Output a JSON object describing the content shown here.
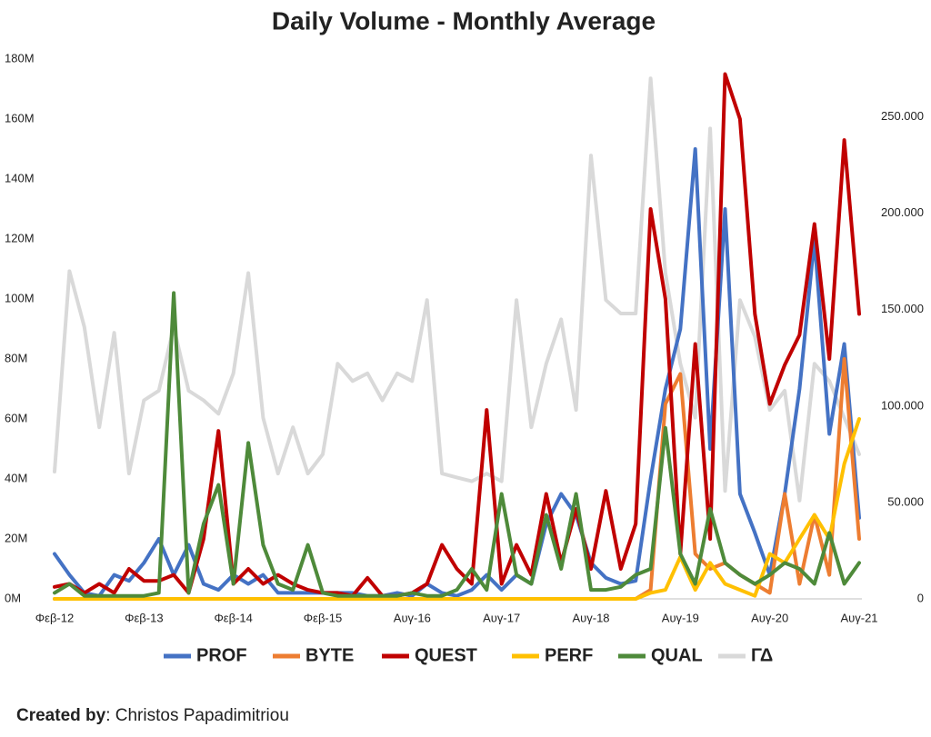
{
  "chart_data": {
    "type": "line",
    "title": "Daily Volume - Monthly Average",
    "categories": [
      "Φεβ-12",
      null,
      null,
      null,
      null,
      null,
      "Φεβ-13",
      null,
      null,
      null,
      null,
      null,
      "Φεβ-14",
      null,
      null,
      null,
      null,
      null,
      "Φεβ-15",
      null,
      null,
      null,
      null,
      null,
      "Αυγ-16",
      null,
      null,
      null,
      null,
      null,
      "Αυγ-17",
      null,
      null,
      null,
      null,
      null,
      "Αυγ-18",
      null,
      null,
      null,
      null,
      null,
      "Αυγ-19",
      null,
      null,
      null,
      null,
      null,
      "Αυγ-20",
      null,
      null,
      null,
      null,
      null,
      "Αυγ-21"
    ],
    "ylim": [
      0,
      180
    ],
    "yticks": [
      {
        "value": 0,
        "label": "0M"
      },
      {
        "value": 20,
        "label": "20M"
      },
      {
        "value": 40,
        "label": "40M"
      },
      {
        "value": 60,
        "label": "60M"
      },
      {
        "value": 80,
        "label": "80M"
      },
      {
        "value": 100,
        "label": "100M"
      },
      {
        "value": 120,
        "label": "120M"
      },
      {
        "value": 140,
        "label": "140M"
      },
      {
        "value": 160,
        "label": "160M"
      },
      {
        "value": 180,
        "label": "180M"
      }
    ],
    "y2lim": [
      0,
      280000
    ],
    "y2ticks": [
      0,
      {
        "value": 50000,
        "label": "50.000"
      },
      {
        "value": 100000,
        "label": "100.000"
      },
      {
        "value": 150000,
        "label": "150.000"
      },
      {
        "value": 200000,
        "label": "200.000"
      },
      {
        "value": 250000,
        "label": "250.000"
      }
    ],
    "grid": false,
    "legend": "bottom",
    "series": [
      {
        "name": "ΓΔ",
        "color": "#d9d9d9",
        "axis": "y2",
        "values": [
          66000,
          170000,
          141000,
          89000,
          138000,
          65000,
          103000,
          108000,
          141000,
          108000,
          103000,
          96000,
          117000,
          169000,
          94000,
          65000,
          89000,
          65000,
          75000,
          122000,
          113000,
          117000,
          103000,
          117000,
          113000,
          155000,
          65000,
          63000,
          61000,
          65000,
          61000,
          155000,
          89000,
          122000,
          145000,
          98000,
          230000,
          155000,
          148000,
          148000,
          270000,
          169000,
          122000,
          94000,
          244000,
          56000,
          155000,
          136000,
          98000,
          108000,
          51000,
          122000,
          113000,
          94000,
          75000
        ]
      },
      {
        "name": "PROF",
        "color": "#4472c4",
        "values": [
          15,
          8,
          2,
          1,
          8,
          6,
          12,
          20,
          8,
          18,
          5,
          3,
          8,
          5,
          8,
          2,
          2,
          2,
          2,
          2,
          2,
          1,
          1,
          2,
          1,
          5,
          2,
          1,
          3,
          8,
          3,
          8,
          5,
          25,
          35,
          28,
          12,
          7,
          5,
          6,
          40,
          70,
          90,
          150,
          50,
          130,
          35,
          22,
          8,
          35,
          70,
          120,
          55,
          85,
          27
        ]
      },
      {
        "name": "BYTE",
        "color": "#ed7d31",
        "values": [
          0,
          0,
          0,
          0,
          0,
          0,
          0,
          0,
          0,
          0,
          0,
          0,
          0,
          0,
          0,
          0,
          0,
          0,
          0,
          0,
          0,
          0,
          0,
          0,
          0,
          0,
          0,
          0,
          0,
          0,
          0,
          0,
          0,
          0,
          0,
          0,
          0,
          0,
          0,
          0,
          3,
          65,
          75,
          15,
          10,
          12,
          8,
          5,
          2,
          35,
          5,
          28,
          8,
          80,
          20
        ]
      },
      {
        "name": "QUEST",
        "color": "#c00000",
        "values": [
          4,
          5,
          2,
          5,
          2,
          10,
          6,
          6,
          8,
          2,
          20,
          56,
          5,
          10,
          5,
          8,
          5,
          3,
          2,
          2,
          1,
          7,
          1,
          1,
          2,
          5,
          18,
          10,
          5,
          63,
          5,
          18,
          8,
          35,
          12,
          30,
          10,
          36,
          10,
          25,
          130,
          100,
          15,
          85,
          20,
          175,
          160,
          95,
          65,
          78,
          88,
          125,
          80,
          153,
          95
        ]
      },
      {
        "name": "PERF",
        "color": "#ffc000",
        "values": [
          0,
          0,
          0,
          0,
          0,
          0,
          0,
          0,
          0,
          0,
          0,
          0,
          0,
          0,
          0,
          0,
          0,
          0,
          0,
          0,
          0,
          0,
          0,
          0,
          0,
          0,
          0,
          0,
          0,
          0,
          0,
          0,
          0,
          0,
          0,
          0,
          0,
          0,
          0,
          0,
          2,
          3,
          14,
          3,
          12,
          5,
          3,
          1,
          15,
          12,
          20,
          28,
          20,
          45,
          60
        ]
      },
      {
        "name": "QUAL",
        "color": "#4e8a3a",
        "values": [
          2,
          5,
          1,
          1,
          1,
          1,
          1,
          2,
          102,
          2,
          25,
          38,
          5,
          52,
          18,
          5,
          3,
          18,
          2,
          1,
          1,
          1,
          1,
          1,
          2,
          1,
          1,
          3,
          10,
          3,
          35,
          8,
          5,
          28,
          10,
          35,
          3,
          3,
          4,
          8,
          10,
          57,
          15,
          5,
          30,
          12,
          8,
          5,
          8,
          12,
          10,
          5,
          22,
          5,
          12
        ]
      }
    ]
  },
  "footer": {
    "label": "Created by",
    "text": ": Christos Papadimitriou"
  }
}
